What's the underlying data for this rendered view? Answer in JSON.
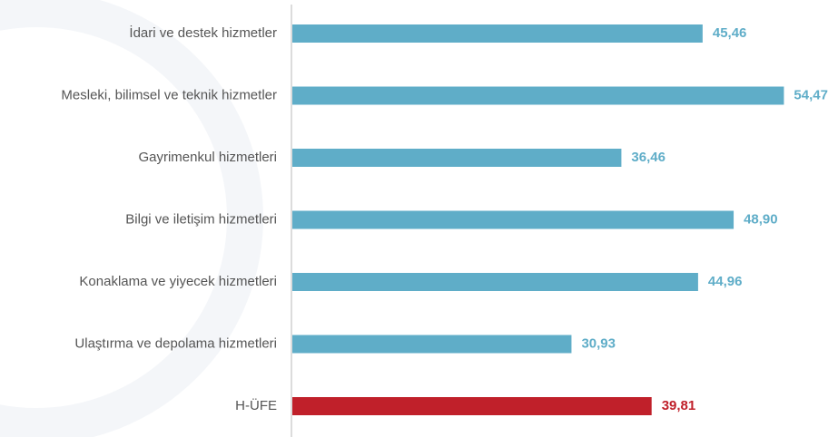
{
  "chart_data": {
    "type": "hbar",
    "categories": [
      "İdari ve destek hizmetler",
      "Mesleki, bilimsel ve teknik hizmetler",
      "Gayrimenkul hizmetleri",
      "Bilgi ve iletişim hizmetleri",
      "Konaklama ve yiyecek hizmetleri",
      "Ulaştırma ve depolama hizmetleri",
      "H-ÜFE"
    ],
    "values": [
      45.46,
      54.47,
      36.46,
      48.9,
      44.96,
      30.93,
      39.81
    ],
    "value_labels": [
      "45,46",
      "54,47",
      "36,46",
      "48,90",
      "44,96",
      "30,93",
      "39,81"
    ],
    "colors": [
      "#5fadc8",
      "#5fadc8",
      "#5fadc8",
      "#5fadc8",
      "#5fadc8",
      "#5fadc8",
      "#c0202a"
    ]
  }
}
